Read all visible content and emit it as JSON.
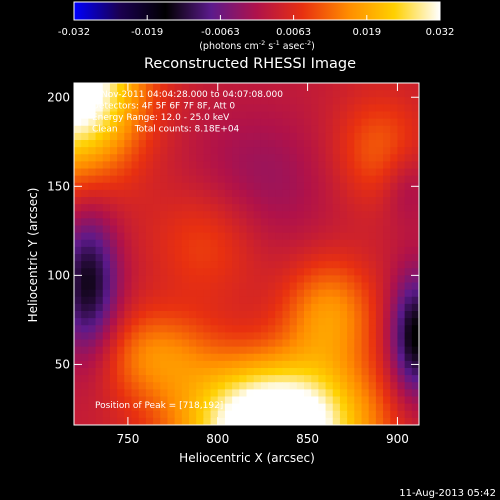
{
  "chart_data": {
    "type": "heatmap",
    "title": "Reconstructed RHESSI Image",
    "xlabel": "Heliocentric X (arcsec)",
    "ylabel": "Heliocentric Y (arcsec)",
    "xlim": [
      720,
      912
    ],
    "ylim": [
      16,
      208
    ],
    "x_ticks": [
      750,
      800,
      850,
      900
    ],
    "y_ticks": [
      50,
      100,
      150,
      200
    ],
    "colorbar": {
      "range": [
        -0.032,
        0.032
      ],
      "ticks": [
        "-0.032",
        "-0.019",
        "-0.0063",
        "0.0063",
        "0.019",
        "0.032"
      ],
      "label_parts": {
        "base": "(photons cm",
        "exp1": "-2",
        "mid": " s",
        "exp2": "-1",
        "tail": " asec",
        "exp3": "-2",
        "end": ")"
      },
      "colors": [
        "#0000ff",
        "#1a0050",
        "#000000",
        "#5c1a8c",
        "#b0124a",
        "#e83010",
        "#ff8c00",
        "#ffd000",
        "#ffffff"
      ]
    },
    "annotations": [
      "2-Nov-2011 04:04:28.000 to 04:07:08.000",
      "Detectors: 4F 5F 6F 7F 8F, Att 0",
      "Energy Range: 12.0 - 25.0 keV",
      "Clean      Total counts: 8.18E+04"
    ],
    "peak_text": "Position of Peak = [718,192]",
    "sources": [
      {
        "x": 720,
        "y": 208,
        "amp": 0.036,
        "sx": 25,
        "sy": 35
      },
      {
        "x": 832,
        "y": 16,
        "amp": 0.04,
        "sx": 35,
        "sy": 25
      },
      {
        "x": 862,
        "y": 78,
        "amp": 0.014,
        "sx": 18,
        "sy": 22
      },
      {
        "x": 890,
        "y": 170,
        "amp": 0.009,
        "sx": 18,
        "sy": 22
      },
      {
        "x": 765,
        "y": 55,
        "amp": 0.012,
        "sx": 22,
        "sy": 18
      },
      {
        "x": 795,
        "y": 120,
        "amp": 0.008,
        "sx": 22,
        "sy": 24
      },
      {
        "x": 820,
        "y": 150,
        "amp": -0.006,
        "sx": 30,
        "sy": 30
      },
      {
        "x": 728,
        "y": 95,
        "amp": -0.018,
        "sx": 12,
        "sy": 30
      },
      {
        "x": 910,
        "y": 65,
        "amp": -0.02,
        "sx": 10,
        "sy": 25
      },
      {
        "x": 905,
        "y": 150,
        "amp": -0.006,
        "sx": 10,
        "sy": 15
      }
    ],
    "base_level": 0.003
  },
  "footer": {
    "timestamp": "11-Aug-2013 05:42"
  }
}
